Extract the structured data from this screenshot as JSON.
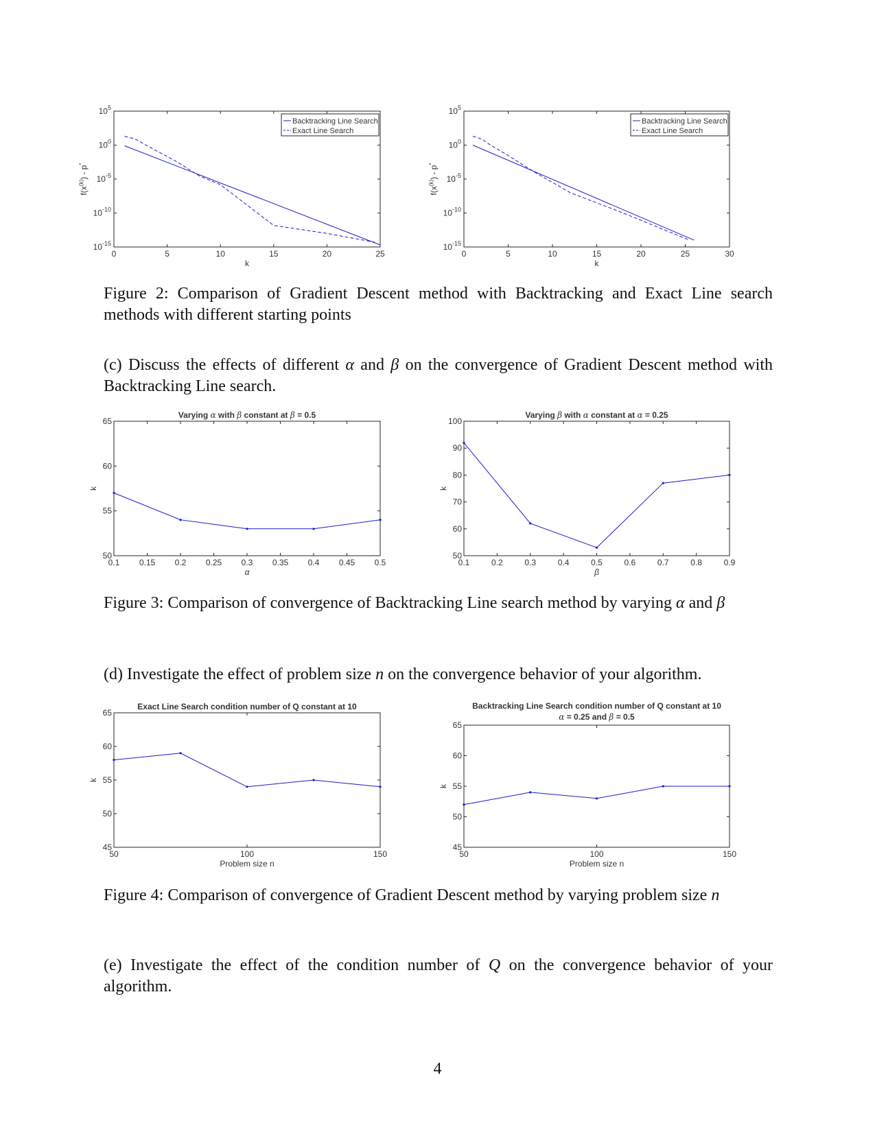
{
  "chart_data": [
    {
      "id": "fig2a",
      "type": "line",
      "yscale": "log",
      "xlim": [
        0,
        25
      ],
      "ylim": [
        1e-15,
        100000
      ],
      "xticks": [
        0,
        5,
        10,
        15,
        20,
        25
      ],
      "ytick_exponents": [
        5,
        0,
        -5,
        -10,
        -15
      ],
      "xlabel": "k",
      "ylabel_main": "f(x",
      "ylabel_sup": "(k)",
      "ylabel_rest": ") - p",
      "ylabel_star": "*",
      "legend": "top-right",
      "series": [
        {
          "name": "Backtracking Line Search",
          "style": "solid",
          "x": [
            1,
            25
          ],
          "y": [
            0.8,
            2e-15
          ]
        },
        {
          "name": "Exact Line Search",
          "style": "dashed",
          "x": [
            1,
            2,
            3,
            6,
            8,
            10,
            15,
            20,
            24.5
          ],
          "y": [
            20,
            8,
            1,
            0.003,
            3e-05,
            1.5e-06,
            1.5e-12,
            1e-13,
            5e-15
          ]
        }
      ]
    },
    {
      "id": "fig2b",
      "type": "line",
      "yscale": "log",
      "xlim": [
        0,
        30
      ],
      "ylim": [
        1e-15,
        100000
      ],
      "xticks": [
        0,
        5,
        10,
        15,
        20,
        25,
        30
      ],
      "ytick_exponents": [
        5,
        0,
        -5,
        -10,
        -15
      ],
      "xlabel": "k",
      "ylabel_main": "f(x",
      "ylabel_sup": "(k)",
      "ylabel_rest": ") - p",
      "ylabel_star": "*",
      "legend": "top-right",
      "series": [
        {
          "name": "Backtracking Line Search",
          "style": "solid",
          "x": [
            1,
            26
          ],
          "y": [
            1,
            1e-14
          ]
        },
        {
          "name": "Exact Line Search",
          "style": "dashed",
          "x": [
            1,
            2,
            3,
            5,
            8,
            12,
            18,
            25.5
          ],
          "y": [
            20,
            8,
            1,
            0.03,
            0.0001,
            1e-07,
            1e-10,
            1e-14
          ]
        }
      ]
    },
    {
      "id": "fig3a",
      "type": "line",
      "title_parts": [
        "Varying ",
        "α",
        " with ",
        "β",
        " constant at ",
        "β",
        " = 0.5"
      ],
      "xlim": [
        0.1,
        0.5
      ],
      "ylim": [
        50,
        65
      ],
      "xticks": [
        0.1,
        0.15,
        0.2,
        0.25,
        0.3,
        0.35,
        0.4,
        0.45,
        0.5
      ],
      "xtick_labels": [
        "0.1",
        "0.15",
        "0.2",
        "0.25",
        "0.3",
        "0.35",
        "0.4",
        "0.45",
        "0.5"
      ],
      "yticks": [
        50,
        55,
        60,
        65
      ],
      "xlabel": "α",
      "ylabel": "k",
      "series": [
        {
          "x": [
            0.1,
            0.2,
            0.3,
            0.4,
            0.5
          ],
          "y": [
            57,
            54,
            53,
            53,
            54
          ]
        }
      ]
    },
    {
      "id": "fig3b",
      "type": "line",
      "title_parts": [
        "Varying ",
        "β",
        " with ",
        "α",
        " constant at ",
        "α",
        " = 0.25"
      ],
      "xlim": [
        0.1,
        0.9
      ],
      "ylim": [
        50,
        100
      ],
      "xticks": [
        0.1,
        0.2,
        0.3,
        0.4,
        0.5,
        0.6,
        0.7,
        0.8,
        0.9
      ],
      "xtick_labels": [
        "0.1",
        "0.2",
        "0.3",
        "0.4",
        "0.5",
        "0.6",
        "0.7",
        "0.8",
        "0.9"
      ],
      "yticks": [
        50,
        60,
        70,
        80,
        90,
        100
      ],
      "xlabel": "β",
      "ylabel": "k",
      "series": [
        {
          "x": [
            0.1,
            0.3,
            0.5,
            0.7,
            0.9
          ],
          "y": [
            92,
            62,
            53,
            77,
            80
          ]
        }
      ]
    },
    {
      "id": "fig4a",
      "type": "line",
      "title_parts": [
        "Exact Line Search condition number of Q constant at 10"
      ],
      "xlim": [
        50,
        150
      ],
      "ylim": [
        45,
        65
      ],
      "xticks": [
        50,
        100,
        150
      ],
      "xtick_labels": [
        "50",
        "100",
        "150"
      ],
      "yticks": [
        45,
        50,
        55,
        60,
        65
      ],
      "xlabel": "Problem size n",
      "ylabel": "k",
      "series": [
        {
          "x": [
            50,
            75,
            100,
            125,
            150
          ],
          "y": [
            58,
            59,
            54,
            55,
            54
          ]
        }
      ]
    },
    {
      "id": "fig4b",
      "type": "line",
      "title_parts": [
        "Backtracking Line Search condition number of Q constant at 10"
      ],
      "title2_parts": [
        "α",
        " = 0.25 and ",
        "β",
        " = 0.5"
      ],
      "xlim": [
        50,
        150
      ],
      "ylim": [
        45,
        65
      ],
      "xticks": [
        50,
        100,
        150
      ],
      "xtick_labels": [
        "50",
        "100",
        "150"
      ],
      "yticks": [
        45,
        50,
        55,
        60,
        65
      ],
      "xlabel": "Problem size n",
      "ylabel": "k",
      "series": [
        {
          "x": [
            50,
            75,
            100,
            125,
            150
          ],
          "y": [
            52,
            54,
            53,
            55,
            55
          ]
        }
      ]
    }
  ],
  "text": {
    "fig2_caption": "Figure 2: Comparison of Gradient Descent method with Backtracking and Exact Line search methods with different starting points",
    "para_c_prefix": "(c) Discuss the effects of different ",
    "para_c_alpha": "α",
    "para_c_and": " and ",
    "para_c_beta": "β",
    "para_c_suffix": " on the convergence of Gradient Descent method with Backtracking Line search.",
    "fig3_caption_prefix": "Figure 3: Comparison of convergence of Backtracking Line search method by varying ",
    "fig3_alpha": "α",
    "fig3_and": " and ",
    "fig3_beta": "β",
    "para_d_prefix": "(d) Investigate the effect of problem size ",
    "para_d_n": "n",
    "para_d_suffix": " on the convergence behavior of your algorithm.",
    "fig4_caption_prefix": "Figure 4: Comparison of convergence of Gradient Descent method by varying problem size ",
    "fig4_n": "n",
    "para_e_prefix": "(e) Investigate the effect of the condition number of ",
    "para_e_q": "Q",
    "para_e_suffix": " on the convergence behavior of your algorithm.",
    "page_number": "4"
  }
}
